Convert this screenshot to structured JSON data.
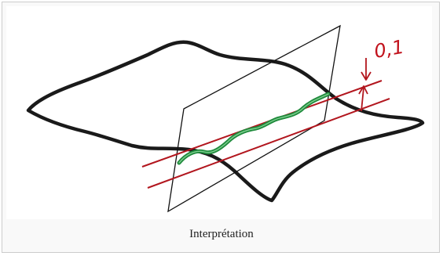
{
  "figure": {
    "tolerance_label": "0,1",
    "caption": "Interprétation",
    "colors": {
      "outline": "#1a1a1a",
      "plane": "#111111",
      "tolerance_lines": "#b2161e",
      "curve": "#1f8a3c",
      "background": "#ffffff",
      "frame_background": "#f9f9f9"
    }
  }
}
